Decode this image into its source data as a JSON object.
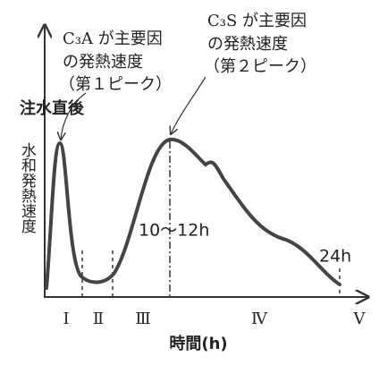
{
  "first_peak_label": [
    "C₃A が主要因",
    "の発熱速度",
    "（第１ピーク）"
  ],
  "second_peak_label": [
    "C₃S が主要因",
    "の発熱速度",
    "（第２ピーク）"
  ],
  "injection_label": "注水直後",
  "y_axis_label": "水和発熱速度",
  "x_axis_label": "時間(h)",
  "time_marks": [
    "10～12h",
    "24h"
  ],
  "stages": [
    "Ⅰ",
    "Ⅱ",
    "Ⅲ",
    "Ⅳ",
    "Ⅴ"
  ]
}
